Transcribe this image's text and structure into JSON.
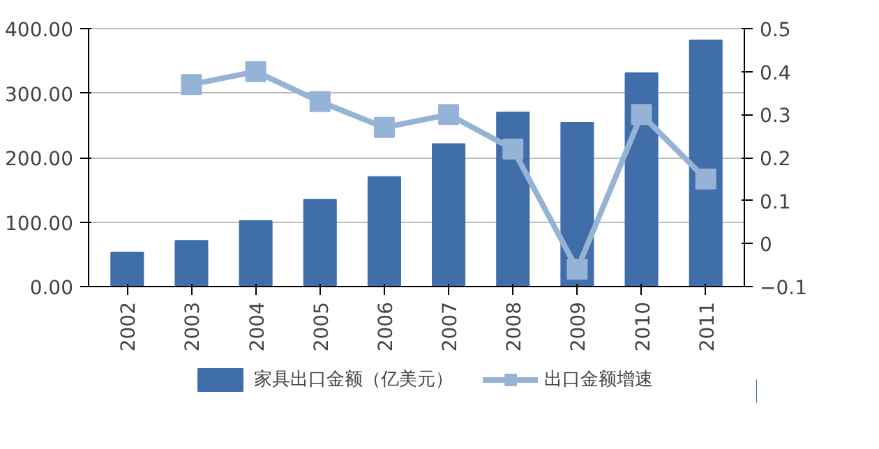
{
  "chart_data": {
    "type": "bar",
    "categories": [
      "2002",
      "2003",
      "2004",
      "2005",
      "2006",
      "2007",
      "2008",
      "2009",
      "2010",
      "2011"
    ],
    "series": [
      {
        "name": "家具出口金额（亿美元）",
        "color": "#3f6ea8",
        "values": [
          53,
          71,
          102,
          135,
          170,
          221,
          270,
          254,
          331,
          382
        ]
      },
      {
        "name": "出口金额增速",
        "type": "line",
        "axis": "y2",
        "color": "#95b3d7",
        "marker": "square",
        "values": [
          null,
          0.37,
          0.4,
          0.33,
          0.27,
          0.3,
          0.22,
          -0.06,
          0.3,
          0.15
        ]
      }
    ],
    "ylim": [
      0,
      400
    ],
    "yticks": [
      {
        "value": 0,
        "label": "0.00"
      },
      {
        "value": 100,
        "label": "100.00"
      },
      {
        "value": 200,
        "label": "200.00"
      },
      {
        "value": 300,
        "label": "300.00"
      },
      {
        "value": 400,
        "label": "400.00"
      }
    ],
    "y2lim": [
      -0.1,
      0.5
    ],
    "y2ticks": [
      -0.1,
      0,
      0.1,
      0.2,
      0.3,
      0.4,
      0.5
    ],
    "grid": "y",
    "legend": "bottom"
  }
}
